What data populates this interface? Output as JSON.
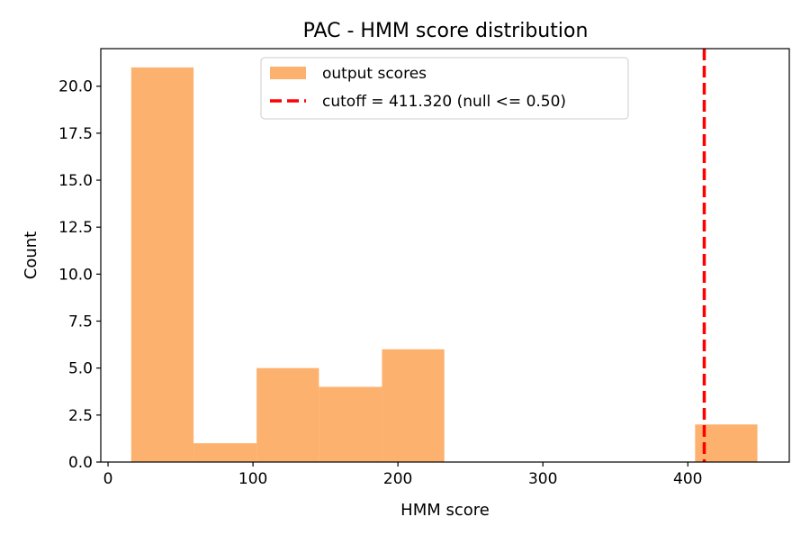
{
  "chart_data": {
    "type": "bar",
    "title": "PAC - HMM score distribution",
    "xlabel": "HMM score",
    "ylabel": "Count",
    "xlim": [
      -5,
      470
    ],
    "ylim": [
      0,
      22
    ],
    "xticks": [
      0,
      100,
      200,
      300,
      400
    ],
    "xtick_labels": [
      "0",
      "100",
      "200",
      "300",
      "400"
    ],
    "yticks": [
      0,
      2.5,
      5,
      7.5,
      10,
      12.5,
      15,
      17.5,
      20
    ],
    "ytick_labels": [
      "0.0",
      "2.5",
      "5.0",
      "7.5",
      "10.0",
      "12.5",
      "15.0",
      "17.5",
      "20.0"
    ],
    "bins": [
      {
        "start": 16,
        "end": 59,
        "count": 21
      },
      {
        "start": 59,
        "end": 102.5,
        "count": 1
      },
      {
        "start": 102.5,
        "end": 145.5,
        "count": 5
      },
      {
        "start": 145.5,
        "end": 189,
        "count": 4
      },
      {
        "start": 189,
        "end": 232,
        "count": 6
      },
      {
        "start": 232,
        "end": 275,
        "count": 0
      },
      {
        "start": 275,
        "end": 318.5,
        "count": 0
      },
      {
        "start": 318.5,
        "end": 361.5,
        "count": 0
      },
      {
        "start": 361.5,
        "end": 405,
        "count": 0
      },
      {
        "start": 405,
        "end": 448,
        "count": 2
      }
    ],
    "bar_color": "#fdb16e",
    "cutoff": {
      "value": 411.32,
      "color": "#ff0000",
      "style": "dashed"
    },
    "grid": false,
    "legend": {
      "placement": "upper center",
      "entries": [
        {
          "label": "output scores",
          "kind": "patch",
          "color": "#fdb16e"
        },
        {
          "label": "cutoff = 411.320 (null <= 0.50)",
          "kind": "dashed-line",
          "color": "#ff0000"
        }
      ]
    }
  }
}
